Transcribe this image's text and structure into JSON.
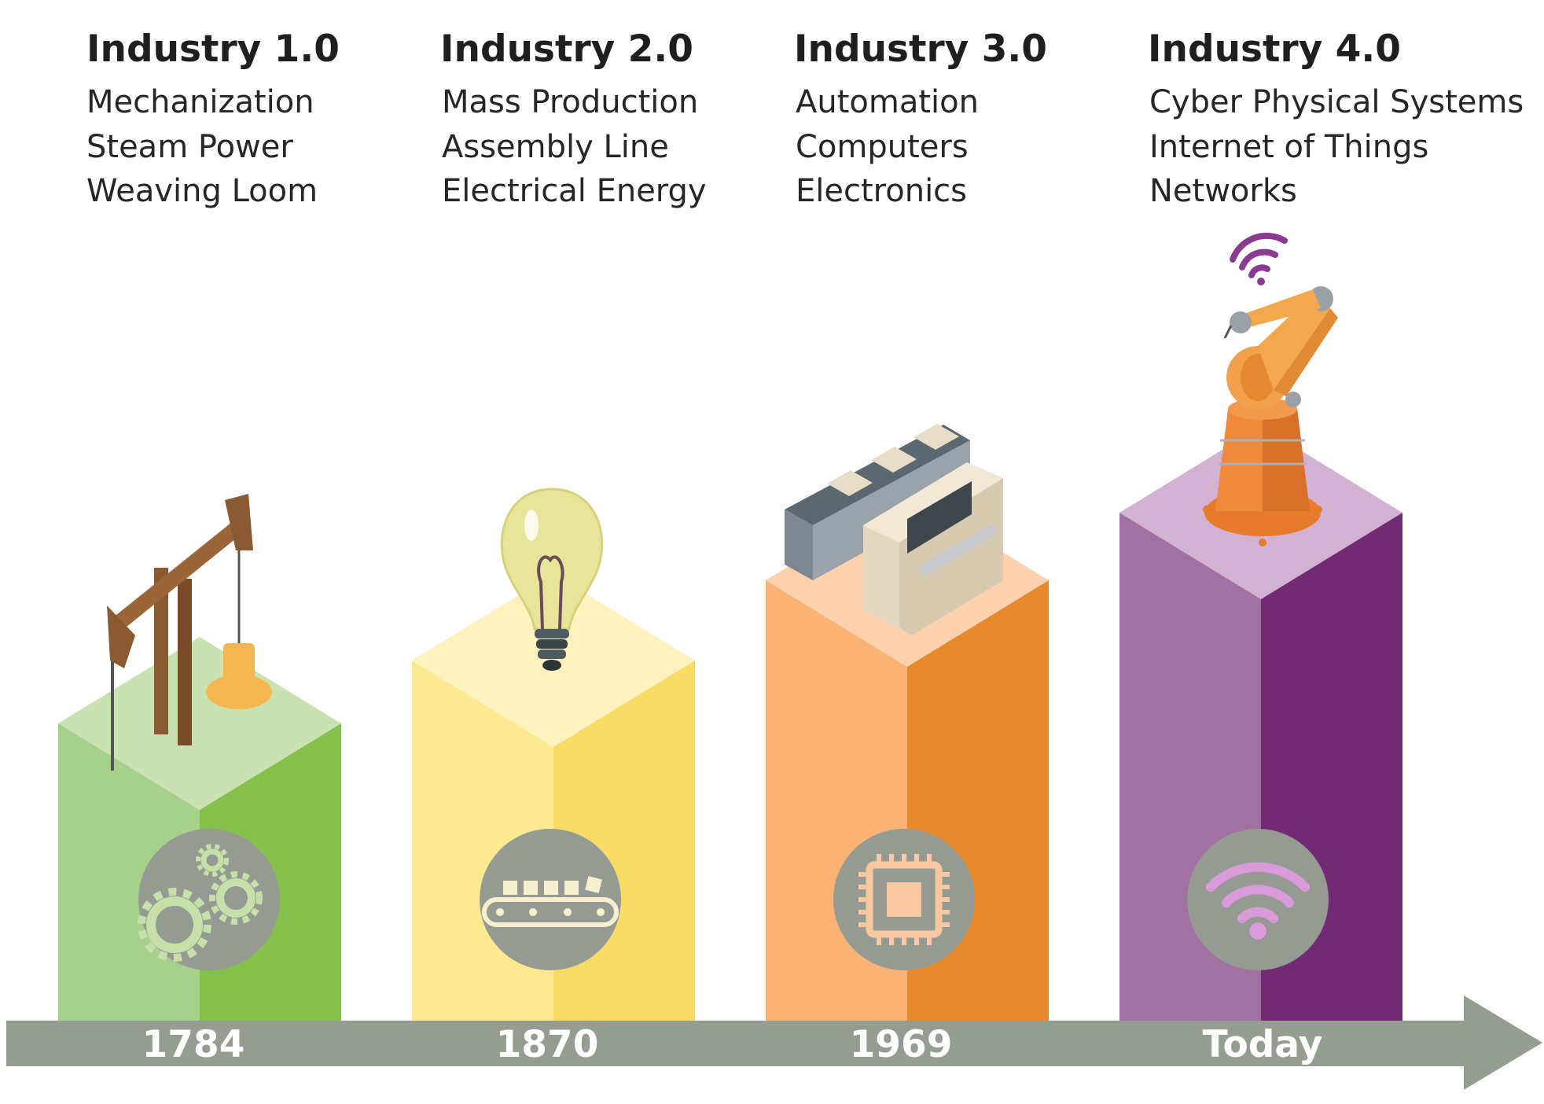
{
  "eras": [
    {
      "title": "Industry 1.0",
      "items": [
        "Mechanization",
        "Steam Power",
        "Weaving Loom"
      ],
      "year": "1784",
      "top_icon": "pumpjack-icon",
      "badge_icon": "gears-icon",
      "colors": {
        "front": "#a8d08d",
        "side": "#84c04a",
        "top": "#c9e2b2",
        "accent": "#c5e0a8"
      }
    },
    {
      "title": "Industry 2.0",
      "items": [
        "Mass Production",
        "Assembly Line",
        "Electrical Energy"
      ],
      "year": "1870",
      "top_icon": "light-bulb-icon",
      "badge_icon": "conveyor-belt-icon",
      "colors": {
        "front": "#fde98f",
        "side": "#f8dc66",
        "top": "#fff2bf",
        "accent": "#f7f0cf"
      }
    },
    {
      "title": "Industry 3.0",
      "items": [
        "Automation",
        "Computers",
        "Electronics"
      ],
      "year": "1969",
      "top_icon": "computer-terminal-icon",
      "badge_icon": "microchip-icon",
      "colors": {
        "front": "#fbb275",
        "side": "#e6882c",
        "top": "#fdd1ad",
        "accent": "#f9c7a1"
      }
    },
    {
      "title": "Industry 4.0",
      "items": [
        "Cyber Physical Systems",
        "Internet of Things",
        "Networks"
      ],
      "year": "Today",
      "top_icon": "robotic-arm-icon",
      "badge_icon": "wifi-icon",
      "colors": {
        "front": "#a171a1",
        "side": "#732a74",
        "top": "#d2b1d2",
        "accent": "#d99ad9"
      }
    }
  ],
  "timeline": {
    "color": "#959c92",
    "badge_color": "#959b93"
  }
}
